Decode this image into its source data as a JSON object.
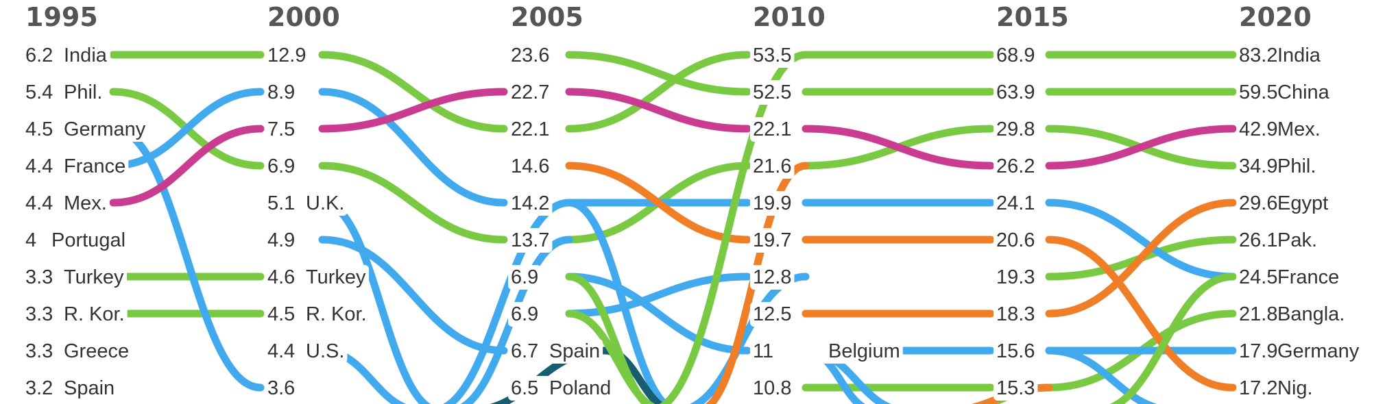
{
  "chart_data": {
    "type": "bump",
    "title": "",
    "years": [
      "1995",
      "2000",
      "2005",
      "2010",
      "2015",
      "2020"
    ],
    "colors": {
      "green": "#7ac943",
      "blue": "#41a9ee",
      "pink": "#c93c8f",
      "orange": "#f07e26",
      "teal": "#175f70"
    },
    "columns": [
      [
        {
          "v": "6.2",
          "name": "India"
        },
        {
          "v": "5.4",
          "name": "Phil."
        },
        {
          "v": "4.5",
          "name": "Germany"
        },
        {
          "v": "4.4",
          "name": "France"
        },
        {
          "v": "4.4",
          "name": "Mex."
        },
        {
          "v": "4",
          "name": "Portugal"
        },
        {
          "v": "3.3",
          "name": "Turkey"
        },
        {
          "v": "3.3",
          "name": "R. Kor."
        },
        {
          "v": "3.3",
          "name": "Greece"
        },
        {
          "v": "3.2",
          "name": "Spain"
        }
      ],
      [
        {
          "v": "12.9",
          "name": ""
        },
        {
          "v": "8.9",
          "name": ""
        },
        {
          "v": "7.5",
          "name": ""
        },
        {
          "v": "6.9",
          "name": ""
        },
        {
          "v": "5.1",
          "name": "U.K."
        },
        {
          "v": "4.9",
          "name": ""
        },
        {
          "v": "4.6",
          "name": "Turkey"
        },
        {
          "v": "4.5",
          "name": "R. Kor."
        },
        {
          "v": "4.4",
          "name": "U.S."
        },
        {
          "v": "3.6",
          "name": ""
        }
      ],
      [
        {
          "v": "23.6",
          "name": ""
        },
        {
          "v": "22.7",
          "name": ""
        },
        {
          "v": "22.1",
          "name": ""
        },
        {
          "v": "14.6",
          "name": ""
        },
        {
          "v": "14.2",
          "name": ""
        },
        {
          "v": "13.7",
          "name": ""
        },
        {
          "v": "6.9",
          "name": ""
        },
        {
          "v": "6.9",
          "name": ""
        },
        {
          "v": "6.7",
          "name": "Spain"
        },
        {
          "v": "6.5",
          "name": "Poland"
        }
      ],
      [
        {
          "v": "53.5",
          "name": ""
        },
        {
          "v": "52.5",
          "name": ""
        },
        {
          "v": "22.1",
          "name": ""
        },
        {
          "v": "21.6",
          "name": ""
        },
        {
          "v": "19.9",
          "name": ""
        },
        {
          "v": "19.7",
          "name": ""
        },
        {
          "v": "12.8",
          "name": ""
        },
        {
          "v": "12.5",
          "name": ""
        },
        {
          "v": "11",
          "name": "Belgium"
        },
        {
          "v": "10.8",
          "name": ""
        }
      ],
      [
        {
          "v": "68.9",
          "name": ""
        },
        {
          "v": "63.9",
          "name": ""
        },
        {
          "v": "29.8",
          "name": ""
        },
        {
          "v": "26.2",
          "name": ""
        },
        {
          "v": "24.1",
          "name": ""
        },
        {
          "v": "20.6",
          "name": ""
        },
        {
          "v": "19.3",
          "name": ""
        },
        {
          "v": "18.3",
          "name": ""
        },
        {
          "v": "15.6",
          "name": ""
        },
        {
          "v": "15.3",
          "name": ""
        }
      ],
      [
        {
          "v": "83.2",
          "name": "India"
        },
        {
          "v": "59.5",
          "name": "China"
        },
        {
          "v": "42.9",
          "name": "Mex."
        },
        {
          "v": "34.9",
          "name": "Phil."
        },
        {
          "v": "29.6",
          "name": "Egypt"
        },
        {
          "v": "26.1",
          "name": "Pak."
        },
        {
          "v": "24.5",
          "name": "France"
        },
        {
          "v": "21.8",
          "name": "Bangla."
        },
        {
          "v": "17.9",
          "name": "Germany"
        },
        {
          "v": "17.2",
          "name": "Nig."
        }
      ]
    ],
    "series": [
      {
        "color": "green",
        "ranks": [
          1,
          1,
          3,
          1,
          1,
          1
        ]
      },
      {
        "color": "green",
        "ranks": [
          2,
          4,
          6,
          4,
          3,
          4
        ]
      },
      {
        "color": "green",
        "ranks": [
          null,
          null,
          1,
          2,
          2,
          2
        ]
      },
      {
        "color": "green",
        "ranks": [
          7,
          7
        ]
      },
      {
        "color": "green",
        "ranks": [
          8,
          8
        ]
      },
      {
        "color": "green",
        "ranks": [
          null,
          null,
          null,
          10,
          10,
          8
        ]
      },
      {
        "color": "green",
        "ranks": [
          null,
          null,
          null,
          null,
          7,
          6
        ]
      },
      {
        "color": "blue",
        "ranks": [
          3,
          10
        ]
      },
      {
        "color": "blue",
        "ranks": [
          4,
          2,
          5,
          5,
          5,
          7
        ]
      },
      {
        "color": "blue",
        "ranks": [
          null,
          6,
          9
        ]
      },
      {
        "color": "blue",
        "ranks": [
          null,
          null,
          8,
          7
        ]
      },
      {
        "color": "blue",
        "ranks": [
          null,
          null,
          7,
          9,
          9,
          9
        ]
      },
      {
        "color": "pink",
        "ranks": [
          5,
          3,
          2,
          3,
          4,
          3
        ]
      },
      {
        "color": "orange",
        "ranks": [
          null,
          null,
          4,
          6,
          6,
          10
        ]
      },
      {
        "color": "orange",
        "ranks": [
          null,
          null,
          null,
          8,
          8,
          5
        ]
      },
      {
        "color": "orange",
        "ranks": [
          null,
          null,
          null,
          8
        ]
      }
    ],
    "fragments": [
      {
        "color": "blue",
        "from": [
          1,
          5
        ],
        "to": [
          1.65,
          11.5
        ]
      },
      {
        "color": "blue",
        "from": [
          1,
          9
        ],
        "to": [
          1.55,
          11.5
        ]
      },
      {
        "color": "blue",
        "from": [
          1.6,
          11.5
        ],
        "to": [
          2,
          5
        ]
      },
      {
        "color": "blue",
        "from": [
          1.7,
          11.5
        ],
        "to": [
          2,
          6
        ]
      },
      {
        "color": "blue",
        "from": [
          2,
          5
        ],
        "to": [
          2.62,
          11.5
        ]
      },
      {
        "color": "blue",
        "from": [
          2.6,
          11.5
        ],
        "to": [
          3,
          7
        ]
      },
      {
        "color": "blue",
        "from": [
          3.38,
          11.5
        ],
        "to": [
          3,
          9
        ]
      },
      {
        "color": "blue",
        "from": [
          3,
          9
        ],
        "to": [
          3.55,
          11.5
        ]
      },
      {
        "color": "blue",
        "from": [
          4,
          9
        ],
        "to": [
          4.7,
          11.5
        ]
      },
      {
        "color": "teal",
        "from": [
          1.8,
          11.5
        ],
        "to": [
          2.2,
          9
        ]
      },
      {
        "color": "teal",
        "from": [
          2.2,
          9
        ],
        "to": [
          2.6,
          11.5
        ]
      },
      {
        "color": "green",
        "from": [
          2.45,
          11.5
        ],
        "to": [
          3,
          1
        ]
      },
      {
        "color": "green",
        "from": [
          2,
          7
        ],
        "to": [
          2.52,
          11.5
        ]
      },
      {
        "color": "green",
        "from": [
          2,
          8
        ],
        "to": [
          2.55,
          11.5
        ]
      },
      {
        "color": "green",
        "from": [
          4.25,
          11.5
        ],
        "to": [
          5,
          7
        ]
      },
      {
        "color": "green",
        "from": [
          3.8,
          11.5
        ],
        "to": [
          4,
          10
        ]
      },
      {
        "color": "orange",
        "from": [
          2.72,
          11.5
        ],
        "to": [
          3,
          4
        ]
      },
      {
        "color": "orange",
        "from": [
          3.75,
          11.5
        ],
        "to": [
          4,
          10
        ]
      }
    ]
  }
}
